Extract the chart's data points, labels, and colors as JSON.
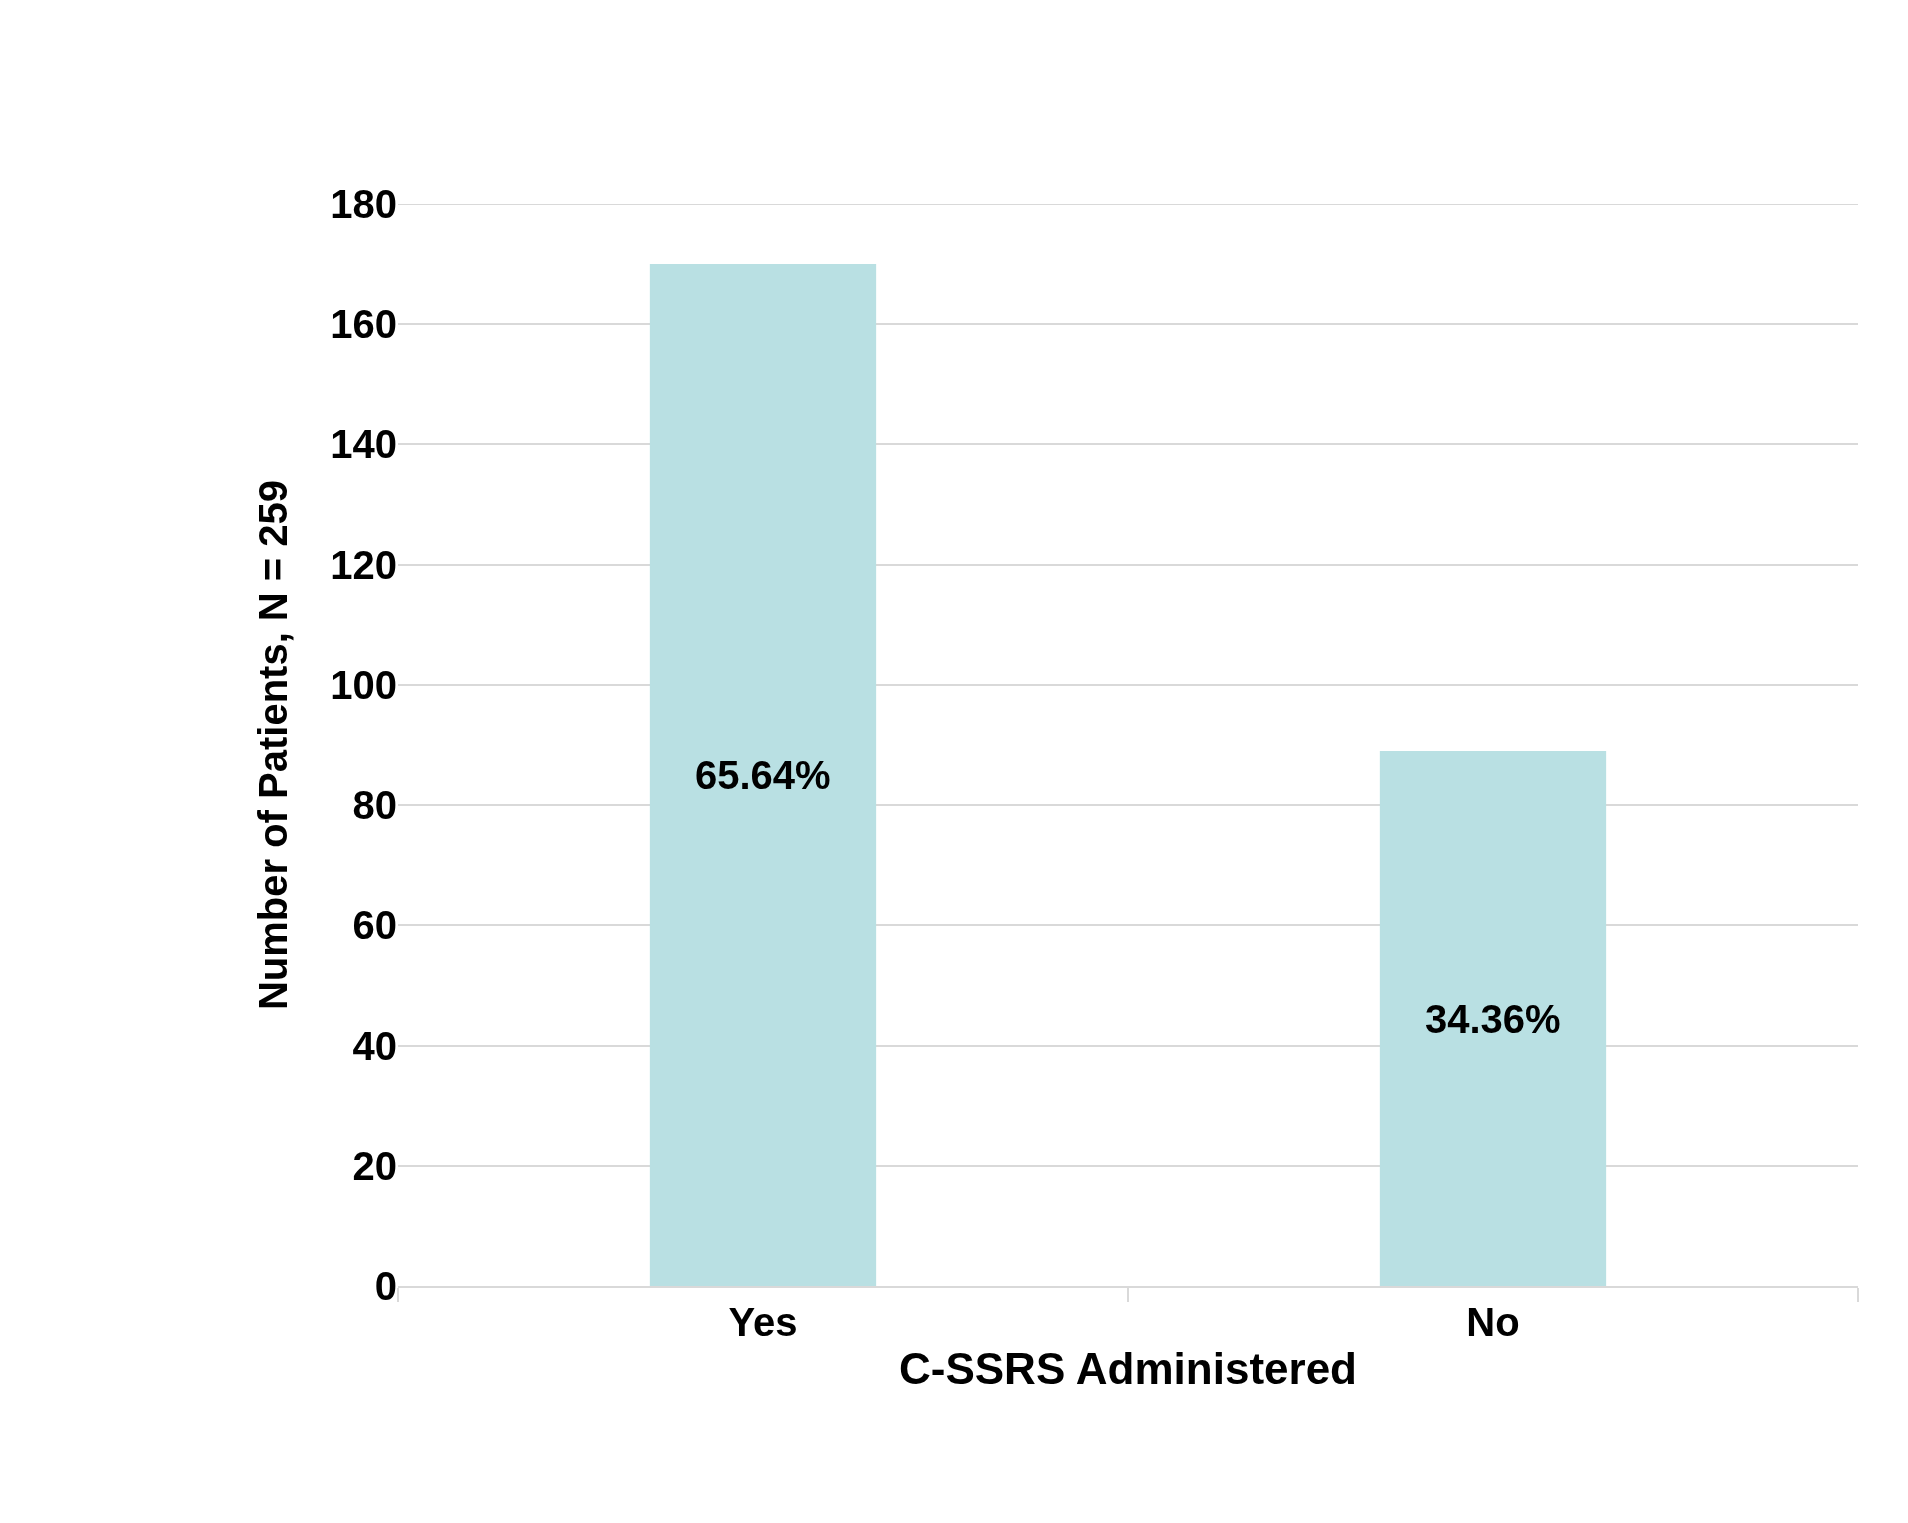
{
  "chart_data": {
    "type": "bar",
    "xlabel": "C-SSRS Administered",
    "ylabel": "Number of Patients, N = 259",
    "categories": [
      "Yes",
      "No"
    ],
    "values": [
      170,
      89
    ],
    "color": "#b9e0e3",
    "annotations": [
      "65.64%",
      "34.36%"
    ],
    "ylim": [
      0,
      180
    ],
    "yticks": [
      0,
      20,
      40,
      60,
      80,
      100,
      120,
      140,
      160,
      180
    ],
    "grid": "y"
  }
}
